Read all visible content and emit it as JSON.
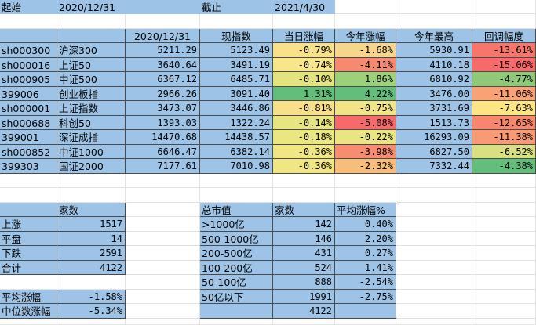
{
  "top_row": {
    "start_label": "起始",
    "start_date": "2020/12/31",
    "end_label": "截止",
    "end_date": "2021/4/30"
  },
  "index_table": {
    "headers": [
      "",
      "",
      "2020/12/31",
      "现指数",
      "当日涨幅",
      "今年涨幅",
      "今年最高",
      "回调幅度"
    ],
    "rows": [
      {
        "code": "sh000300",
        "name": "沪深300",
        "base": "5211.29",
        "current": "5123.49",
        "daily": "-0.79%",
        "ytd": "-1.68%",
        "high": "5930.91",
        "drawdown": "-13.61%",
        "daily_color": "#f8e189",
        "ytd_color": "#f7d58b",
        "dd_color": "#f8756b"
      },
      {
        "code": "sh000016",
        "name": "上证50",
        "base": "3640.64",
        "current": "3491.19",
        "daily": "-0.74%",
        "ytd": "-4.11%",
        "high": "4110.18",
        "drawdown": "-15.06%",
        "daily_color": "#f8e68a",
        "ytd_color": "#f68a70",
        "dd_color": "#f8696b"
      },
      {
        "code": "sh000905",
        "name": "中证500",
        "base": "6367.12",
        "current": "6485.71",
        "daily": "-0.10%",
        "ytd": "1.86%",
        "high": "6810.92",
        "drawdown": "-4.77%",
        "daily_color": "#e4e47f",
        "ytd_color": "#9dd07b",
        "dd_color": "#8ec97a"
      },
      {
        "code": "399006",
        "name": "创业板指",
        "base": "2966.26",
        "current": "3091.40",
        "daily": "1.31%",
        "ytd": "4.22%",
        "high": "3476.00",
        "drawdown": "-11.06%",
        "daily_color": "#63be7b",
        "ytd_color": "#63be7b",
        "dd_color": "#f8a276"
      },
      {
        "code": "sh000001",
        "name": "上证指数",
        "base": "3473.07",
        "current": "3446.86",
        "daily": "-0.81%",
        "ytd": "-0.75%",
        "high": "3731.69",
        "drawdown": "-7.63%",
        "daily_color": "#f8df89",
        "ytd_color": "#f1e486",
        "dd_color": "#fee483"
      },
      {
        "code": "sh000688",
        "name": "科创50",
        "base": "1393.03",
        "current": "1322.24",
        "daily": "-0.14%",
        "ytd": "-5.08%",
        "high": "1513.73",
        "drawdown": "-12.65%",
        "daily_color": "#e6e580",
        "ytd_color": "#f8696b",
        "dd_color": "#f8866f"
      },
      {
        "code": "399001",
        "name": "深证成指",
        "base": "14470.68",
        "current": "14438.57",
        "daily": "-0.18%",
        "ytd": "-0.22%",
        "high": "16293.09",
        "drawdown": "-11.38%",
        "daily_color": "#eae681",
        "ytd_color": "#e8e582",
        "dd_color": "#f89b74"
      },
      {
        "code": "sh000852",
        "name": "中证1000",
        "base": "6646.47",
        "current": "6382.14",
        "daily": "-0.36%",
        "ytd": "-3.98%",
        "high": "6827.50",
        "drawdown": "-6.52%",
        "daily_color": "#f0e684",
        "ytd_color": "#f68d71",
        "dd_color": "#d8e081"
      },
      {
        "code": "399303",
        "name": "国证2000",
        "base": "7177.61",
        "current": "7010.98",
        "daily": "-0.36%",
        "ytd": "-2.32%",
        "high": "7332.44",
        "drawdown": "-4.38%",
        "daily_color": "#f0e684",
        "ytd_color": "#f8bc7b",
        "dd_color": "#63be7b"
      }
    ]
  },
  "breadth_table": {
    "header": "家数",
    "rows": [
      {
        "label": "上涨",
        "value": "1517"
      },
      {
        "label": "平盘",
        "value": "14"
      },
      {
        "label": "下跌",
        "value": "2591"
      },
      {
        "label": "合计",
        "value": "4122"
      }
    ],
    "avg_label": "平均涨幅",
    "avg_value": "-1.58%",
    "median_label": "中位数涨幅",
    "median_value": "-5.34%"
  },
  "cap_table": {
    "headers": [
      "总市值",
      "家数",
      "平均涨幅%"
    ],
    "rows": [
      {
        "bucket": ">1000亿",
        "count": "142",
        "avg": "0.40%"
      },
      {
        "bucket": "500-1000亿",
        "count": "146",
        "avg": "2.20%"
      },
      {
        "bucket": "200-500亿",
        "count": "431",
        "avg": "0.27%"
      },
      {
        "bucket": "100-200亿",
        "count": "524",
        "avg": "1.41%"
      },
      {
        "bucket": "50-100亿",
        "count": "888",
        "avg": "-2.54%"
      },
      {
        "bucket": "50亿以下",
        "count": "1991",
        "avg": "-2.75%"
      }
    ],
    "total": "4122"
  }
}
